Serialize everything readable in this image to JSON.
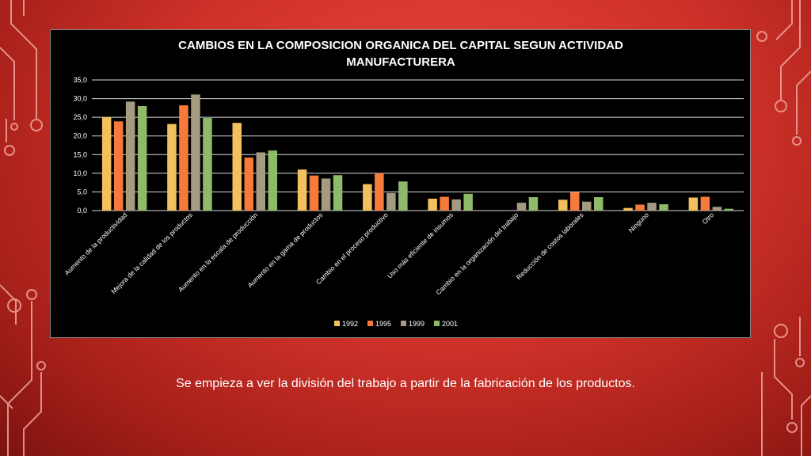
{
  "slide": {
    "caption": "Se empieza a ver la división del trabajo a partir de la fabricación de los productos."
  },
  "colors": {
    "background": "#cf3229",
    "circuit": "#f0a49c",
    "panel": "#000000",
    "grid": "#d9d9d9",
    "text": "#ffffff"
  },
  "chart_data": {
    "type": "bar",
    "title": "CAMBIOS EN LA COMPOSICION ORGANICA DEL CAPITAL SEGUN ACTIVIDAD MANUFACTURERA",
    "title_lines": [
      "CAMBIOS EN LA COMPOSICION ORGANICA DEL CAPITAL SEGUN ACTIVIDAD",
      "MANUFACTURERA"
    ],
    "xlabel": "",
    "ylabel": "",
    "ylim": [
      0,
      35
    ],
    "yticks": [
      "0,0",
      "5,0",
      "10,0",
      "15,0",
      "20,0",
      "25,0",
      "30,0",
      "35,0"
    ],
    "grid": true,
    "legend_position": "bottom",
    "categories": [
      "Aumento de la productividad",
      "Mejora de la calidad de los productos",
      "Aumento en la escala de producción",
      "Aumento en la gama de productos",
      "Cambio en el proceso productivo",
      "Uso más eficiente de insumos",
      "Cambio en la organización del trabajo",
      "Reducción de costos laborales",
      "Ninguno",
      "Otro"
    ],
    "series": [
      {
        "name": "1992",
        "color": "#f2c05c",
        "values": [
          25.0,
          23.2,
          23.5,
          11.0,
          7.1,
          3.2,
          0,
          2.9,
          0.7,
          3.5
        ]
      },
      {
        "name": "1995",
        "color": "#f57a3c",
        "values": [
          23.9,
          28.2,
          14.2,
          9.4,
          10.0,
          3.7,
          0,
          4.9,
          1.6,
          3.7
        ]
      },
      {
        "name": "1999",
        "color": "#a59b80",
        "values": [
          29.2,
          31.1,
          15.6,
          8.6,
          4.7,
          3.0,
          2.1,
          2.4,
          2.1,
          1.0
        ]
      },
      {
        "name": "2001",
        "color": "#8fba6a",
        "values": [
          28.0,
          24.8,
          16.1,
          9.5,
          7.8,
          4.5,
          3.6,
          3.6,
          1.7,
          0.5
        ]
      }
    ]
  }
}
